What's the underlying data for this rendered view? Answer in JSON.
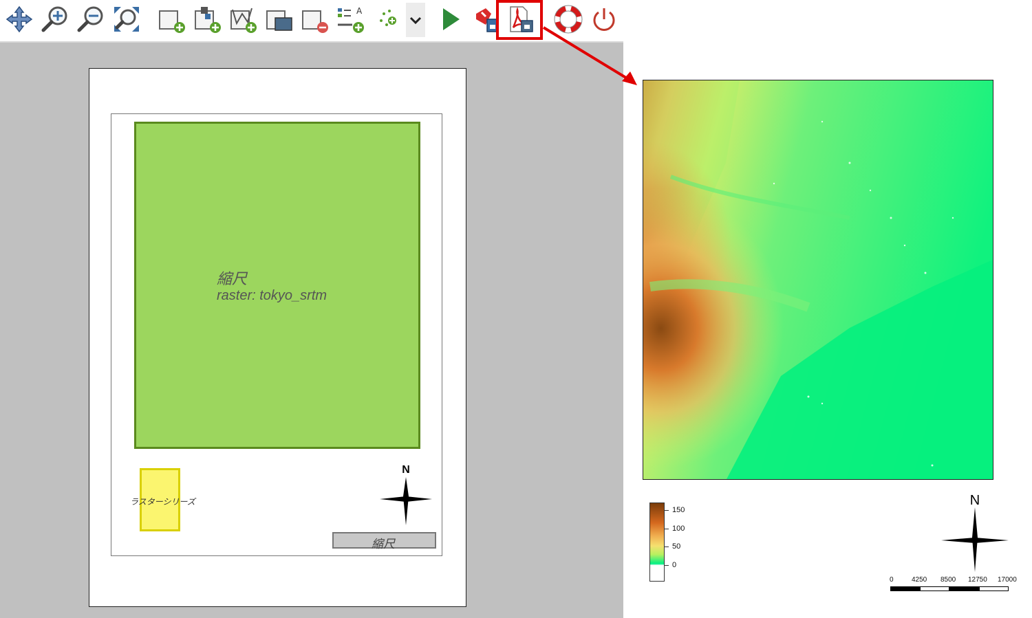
{
  "toolbar": {
    "icons": [
      "pan-icon",
      "zoom-in-icon",
      "zoom-out-icon",
      "zoom-full-icon",
      "add-map-icon",
      "add-image-icon",
      "add-shape-icon",
      "add-arrow-icon",
      "remove-item-icon",
      "add-legend-icon",
      "add-point-icon",
      "chevron-down-icon",
      "run-icon",
      "export-image-icon",
      "export-pdf-icon",
      "help-icon",
      "power-icon"
    ]
  },
  "layout": {
    "map_label_title": "縮尺",
    "map_label_layer": "raster: tokyo_srtm",
    "legend_label": "ラスターシリーズ",
    "north_label": "N",
    "scale_label": "縮尺"
  },
  "output": {
    "north_label": "N",
    "colorbar_labels": [
      "150",
      "100",
      "50",
      "0"
    ],
    "scalebar_labels": [
      "0",
      "4250",
      "8500",
      "12750",
      "17000"
    ]
  },
  "colors": {
    "highlight": "#e00000",
    "map_fill": "#9cd65e",
    "legend_fill": "#fbf56f"
  }
}
